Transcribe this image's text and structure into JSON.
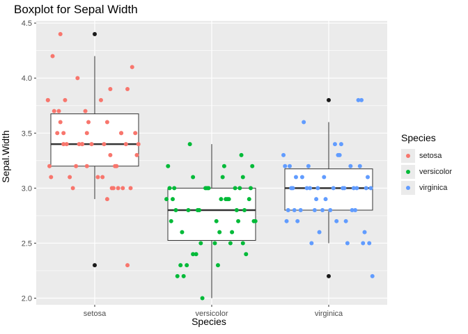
{
  "chart_data": {
    "type": "boxplot",
    "title": "Boxplot for Sepal Width",
    "xlabel": "Species",
    "ylabel": "Sepal.Width",
    "ylim": [
      1.94,
      4.52
    ],
    "y_ticks": [
      2.0,
      2.5,
      3.0,
      3.5,
      4.0,
      4.5
    ],
    "y_tick_labels": [
      "2.0",
      "2.5",
      "3.0",
      "3.5",
      "4.0",
      "4.5"
    ],
    "grid": true,
    "legend": {
      "title": "Species",
      "position": "right"
    },
    "categories": [
      "setosa",
      "versicolor",
      "virginica"
    ],
    "boxes": [
      {
        "category": "setosa",
        "min": 2.9,
        "q1": 3.2,
        "median": 3.4,
        "q3": 3.675,
        "max": 4.2,
        "outliers": [
          4.4,
          2.3
        ]
      },
      {
        "category": "versicolor",
        "min": 2.0,
        "q1": 2.525,
        "median": 2.8,
        "q3": 3.0,
        "max": 3.4,
        "outliers": []
      },
      {
        "category": "virginica",
        "min": 2.5,
        "q1": 2.8,
        "median": 3.0,
        "q3": 3.175,
        "max": 3.6,
        "outliers": [
          3.8,
          2.2
        ]
      }
    ],
    "series": [
      {
        "name": "setosa",
        "color": "#F8766D",
        "points": [
          [
            -0.05,
            3.5
          ],
          [
            0.18,
            3.0
          ],
          [
            -0.12,
            3.2
          ],
          [
            -0.28,
            3.1
          ],
          [
            -0.22,
            3.6
          ],
          [
            0.21,
            3.9
          ],
          [
            -0.08,
            3.4
          ],
          [
            -0.2,
            3.4
          ],
          [
            0.08,
            2.9
          ],
          [
            -0.16,
            3.1
          ],
          [
            -0.26,
            3.7
          ],
          [
            0.06,
            3.4
          ],
          [
            0.23,
            3.0
          ],
          [
            0.12,
            3.0
          ],
          [
            -0.11,
            4.0
          ],
          [
            -0.22,
            4.4
          ],
          [
            0.1,
            3.9
          ],
          [
            0.17,
            3.5
          ],
          [
            -0.3,
            3.8
          ],
          [
            0.04,
            3.8
          ],
          [
            0.2,
            3.4
          ],
          [
            -0.23,
            3.7
          ],
          [
            -0.04,
            3.6
          ],
          [
            0.27,
            3.3
          ],
          [
            -0.02,
            3.4
          ],
          [
            0.15,
            3.0
          ],
          [
            -0.1,
            3.4
          ],
          [
            0.26,
            3.5
          ],
          [
            -0.18,
            3.4
          ],
          [
            -0.29,
            3.2
          ],
          [
            0.05,
            3.1
          ],
          [
            -0.08,
            3.4
          ],
          [
            0.24,
            4.1
          ],
          [
            -0.27,
            4.2
          ],
          [
            0.02,
            3.1
          ],
          [
            0.13,
            3.2
          ],
          [
            -0.24,
            3.5
          ],
          [
            0.08,
            3.6
          ],
          [
            -0.14,
            3.0
          ],
          [
            0.28,
            3.4
          ],
          [
            -0.2,
            3.5
          ],
          [
            0.21,
            2.3
          ],
          [
            -0.05,
            3.2
          ],
          [
            0.17,
            3.5
          ],
          [
            -0.19,
            3.8
          ],
          [
            0.11,
            3.0
          ],
          [
            -0.3,
            3.8
          ],
          [
            0.14,
            3.2
          ],
          [
            -0.06,
            3.7
          ],
          [
            0.1,
            3.3
          ]
        ]
      },
      {
        "name": "versicolor",
        "color": "#00BA38",
        "points": [
          [
            -0.28,
            3.2
          ],
          [
            0.08,
            3.2
          ],
          [
            -0.12,
            3.1
          ],
          [
            0.04,
            2.3
          ],
          [
            0.21,
            2.8
          ],
          [
            -0.23,
            2.8
          ],
          [
            0.19,
            3.3
          ],
          [
            -0.12,
            2.4
          ],
          [
            0.1,
            2.9
          ],
          [
            0.28,
            2.7
          ],
          [
            -0.06,
            2.0
          ],
          [
            0.15,
            3.0
          ],
          [
            -0.18,
            2.2
          ],
          [
            0.06,
            2.9
          ],
          [
            -0.25,
            2.9
          ],
          [
            0.2,
            3.1
          ],
          [
            -0.03,
            3.0
          ],
          [
            0.17,
            2.7
          ],
          [
            -0.22,
            2.2
          ],
          [
            0.02,
            2.5
          ],
          [
            0.26,
            3.2
          ],
          [
            -0.15,
            2.8
          ],
          [
            0.12,
            2.5
          ],
          [
            -0.08,
            2.8
          ],
          [
            0.24,
            2.9
          ],
          [
            -0.27,
            3.0
          ],
          [
            0.16,
            2.8
          ],
          [
            -0.04,
            3.0
          ],
          [
            0.09,
            2.9
          ],
          [
            -0.19,
            2.6
          ],
          [
            0.22,
            2.4
          ],
          [
            -0.1,
            2.4
          ],
          [
            0.03,
            2.7
          ],
          [
            -0.26,
            2.7
          ],
          [
            0.18,
            3.0
          ],
          [
            -0.14,
            3.4
          ],
          [
            0.07,
            3.1
          ],
          [
            -0.2,
            2.3
          ],
          [
            0.25,
            3.0
          ],
          [
            -0.07,
            2.5
          ],
          [
            0.13,
            2.6
          ],
          [
            -0.24,
            3.0
          ],
          [
            0.05,
            2.6
          ],
          [
            -0.16,
            2.3
          ],
          [
            0.27,
            2.7
          ],
          [
            -0.02,
            3.0
          ],
          [
            0.11,
            2.9
          ],
          [
            -0.29,
            2.9
          ],
          [
            0.2,
            2.5
          ],
          [
            -0.09,
            2.8
          ]
        ]
      },
      {
        "name": "virginica",
        "color": "#619CFF",
        "points": [
          [
            0.06,
            3.3
          ],
          [
            -0.2,
            2.7
          ],
          [
            0.18,
            3.0
          ],
          [
            -0.08,
            2.9
          ],
          [
            0.24,
            3.0
          ],
          [
            -0.23,
            3.0
          ],
          [
            0.12,
            2.5
          ],
          [
            -0.02,
            2.9
          ],
          [
            0.26,
            2.5
          ],
          [
            -0.16,
            3.6
          ],
          [
            0.2,
            3.2
          ],
          [
            -0.27,
            2.7
          ],
          [
            0.09,
            3.0
          ],
          [
            -0.11,
            2.5
          ],
          [
            0.15,
            2.8
          ],
          [
            -0.25,
            3.2
          ],
          [
            0.03,
            3.0
          ],
          [
            0.21,
            3.8
          ],
          [
            -0.06,
            2.6
          ],
          [
            0.28,
            2.2
          ],
          [
            -0.13,
            3.2
          ],
          [
            0.17,
            2.8
          ],
          [
            -0.22,
            2.8
          ],
          [
            0.05,
            2.7
          ],
          [
            -0.29,
            3.3
          ],
          [
            0.14,
            3.2
          ],
          [
            -0.04,
            2.8
          ],
          [
            0.27,
            3.0
          ],
          [
            -0.18,
            2.8
          ],
          [
            0.1,
            3.0
          ],
          [
            -0.09,
            2.8
          ],
          [
            0.19,
            3.8
          ],
          [
            -0.26,
            2.8
          ],
          [
            0.01,
            2.8
          ],
          [
            0.23,
            2.6
          ],
          [
            -0.14,
            3.0
          ],
          [
            0.08,
            3.4
          ],
          [
            -0.21,
            3.1
          ],
          [
            0.16,
            3.0
          ],
          [
            -0.03,
            3.1
          ],
          [
            0.25,
            3.1
          ],
          [
            -0.17,
            3.1
          ],
          [
            0.11,
            2.7
          ],
          [
            -0.28,
            3.2
          ],
          [
            0.07,
            3.3
          ],
          [
            -0.07,
            3.0
          ],
          [
            0.22,
            2.5
          ],
          [
            -0.12,
            3.0
          ],
          [
            0.04,
            3.4
          ],
          [
            -0.24,
            3.0
          ]
        ]
      }
    ]
  }
}
